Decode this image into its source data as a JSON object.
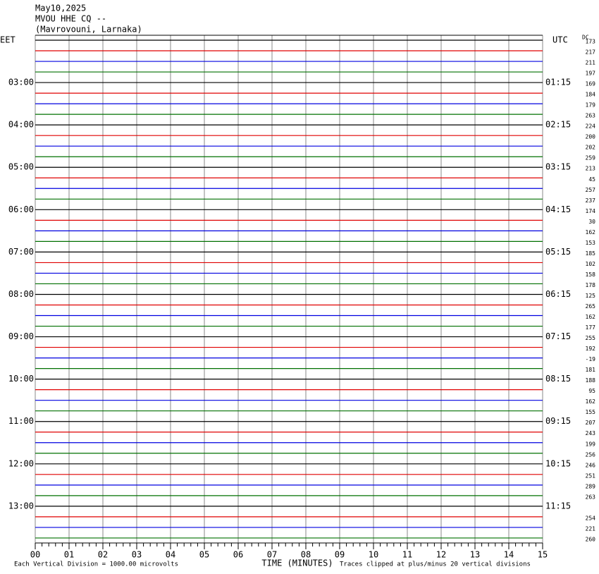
{
  "header": {
    "date": "May10,2025",
    "station": "MVOU HHE CQ --",
    "location": "(Mavrovouni, Larnaka)"
  },
  "left_zone": "EET",
  "right_zone": "UTC",
  "dc_label": "DC",
  "local_times": [
    "03:00",
    "04:00",
    "05:00",
    "06:00",
    "07:00",
    "08:00",
    "09:00",
    "10:00",
    "11:00",
    "12:00",
    "13:00"
  ],
  "utc_times": [
    "01:15",
    "02:15",
    "03:15",
    "04:15",
    "05:15",
    "06:15",
    "07:15",
    "08:15",
    "09:15",
    "10:15",
    "11:15"
  ],
  "dc_offsets": [
    "173",
    "217",
    "211",
    "197",
    "169",
    "184",
    "179",
    "263",
    "224",
    "200",
    "202",
    "259",
    "213",
    "45",
    "257",
    "237",
    "174",
    "30",
    "162",
    "153",
    "185",
    "102",
    "158",
    "178",
    "125",
    "265",
    "162",
    "177",
    "255",
    "192",
    "-19",
    "181",
    "188",
    "95",
    "162",
    "155",
    "207",
    "243",
    "199",
    "256",
    "246",
    "251",
    "289",
    "263",
    null,
    "254",
    "221",
    "260"
  ],
  "trace_colors": [
    "#000000",
    "#e00000",
    "#0000e0",
    "#007000"
  ],
  "x_ticks": [
    "00",
    "01",
    "02",
    "03",
    "04",
    "05",
    "06",
    "07",
    "08",
    "09",
    "10",
    "11",
    "12",
    "13",
    "14",
    "15"
  ],
  "x_label": "TIME (MINUTES)",
  "footer_left": "Each Vertical Division = 1000.00 microvolts",
  "footer_right": "Traces clipped at plus/minus 20 vertical divisions"
}
